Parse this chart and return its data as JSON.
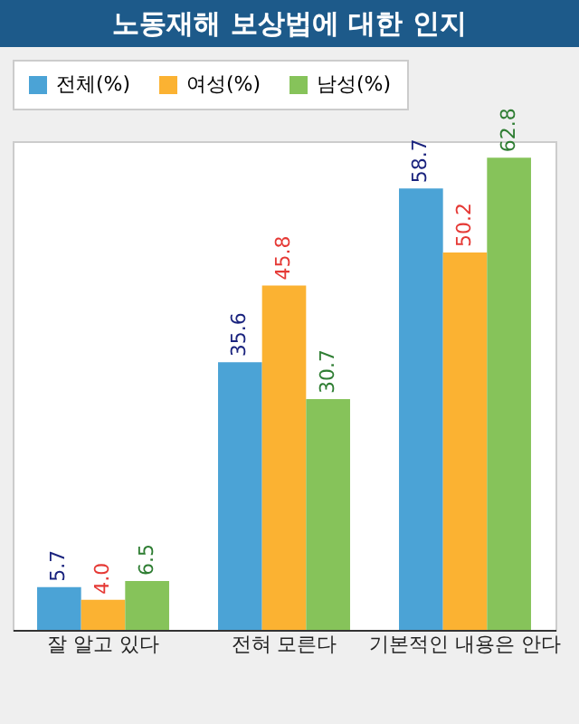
{
  "chart_data": {
    "type": "bar",
    "title": "노동재해 보상법에 대한 인지",
    "categories": [
      "잘 알고 있다",
      "전혀 모른다",
      "기본적인 내용은 안다"
    ],
    "series": [
      {
        "name": "전체(%)",
        "color": "#4ba3d6",
        "values": [
          5.7,
          35.6,
          58.7
        ],
        "value_labels": [
          "5.7",
          "35.6",
          "58.7"
        ]
      },
      {
        "name": "여성(%)",
        "color": "#fbb232",
        "values": [
          4.0,
          45.8,
          50.2
        ],
        "value_labels": [
          "4.0",
          "45.8",
          "50.2"
        ]
      },
      {
        "name": "남성(%)",
        "color": "#86c35a",
        "values": [
          6.5,
          30.7,
          62.8
        ],
        "value_labels": [
          "6.5",
          "30.7",
          "62.8"
        ]
      }
    ],
    "legend": "top left",
    "grid": false
  }
}
